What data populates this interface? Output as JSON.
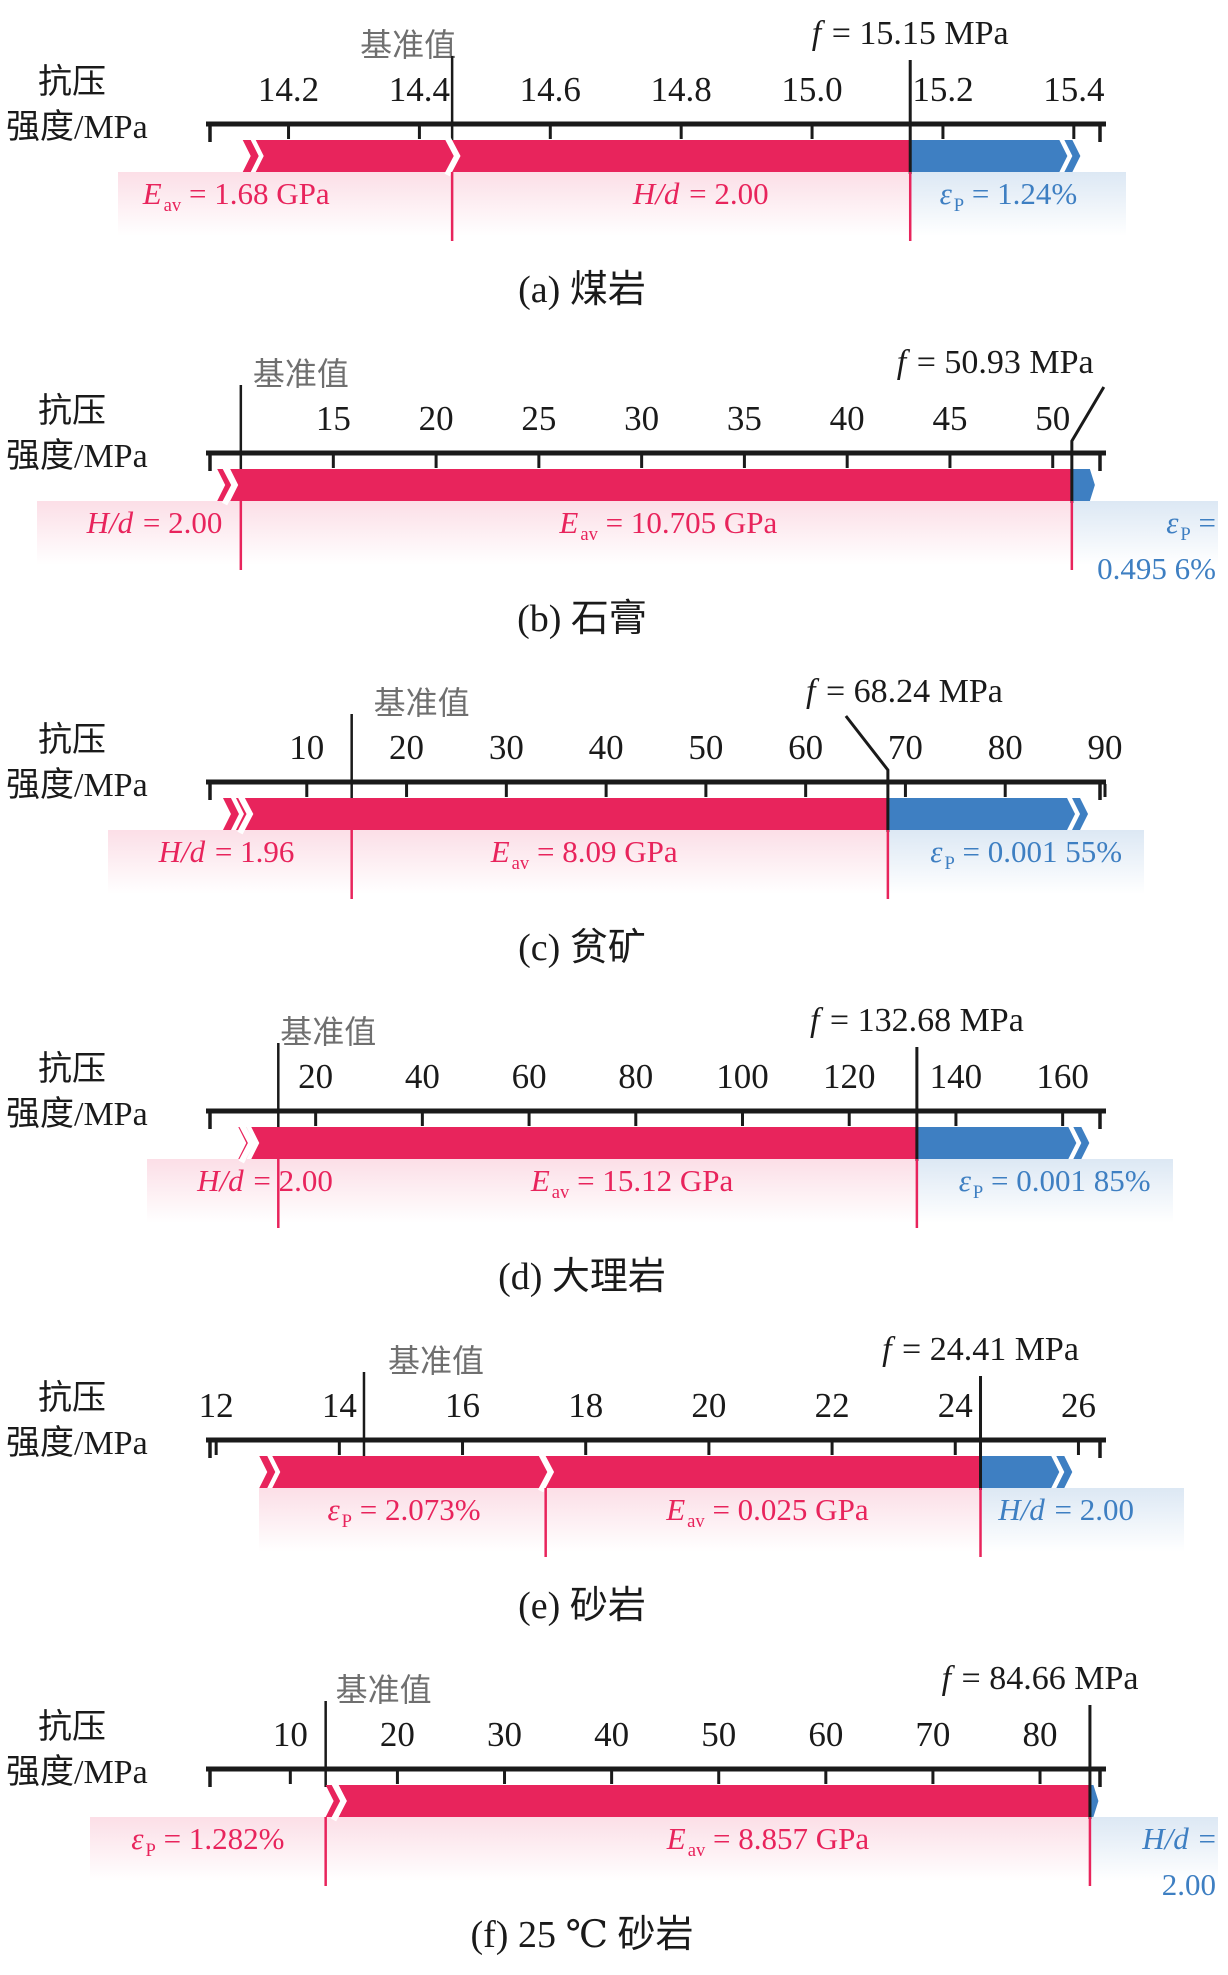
{
  "figure": {
    "background": "#ffffff"
  },
  "colors": {
    "crimson": "#E8245C",
    "blue": "#3E7FC2",
    "axis": "#1a1a1a",
    "ref_gray": "#6f6f6f",
    "pink_fade": "rgba(232,36,92,0.15)",
    "blue_fade": "rgba(62,127,194,0.18)"
  },
  "axis_label": {
    "line1": "抗压",
    "line2": "强度/MPa"
  },
  "ref_label": "基准值",
  "chart_data": {
    "type": "bar",
    "unit": "MPa",
    "panels": [
      {
        "id": "a",
        "caption": "(a) 煤岩",
        "f": 15.15,
        "f_var": "f",
        "f_text": "= 15.15 MPa",
        "f_label_at": 15.15,
        "connector": "vertical",
        "axis": {
          "min": 14.08,
          "max": 15.44
        },
        "tick_values": [
          14.2,
          14.4,
          14.6,
          14.8,
          15.0,
          15.2,
          15.4
        ],
        "tick_labels": [
          "14.2",
          "14.4",
          "14.6",
          "14.8",
          "15.0",
          "15.2",
          "15.4"
        ],
        "ref": 14.45,
        "ref_dx": -44,
        "sep1": 14.45,
        "break_at": 14.45,
        "bar_start": 14.13,
        "blue_end": 15.41,
        "annotations": [
          {
            "v": "E",
            "s": "av",
            "t": "= 1.68 GPa",
            "c": "pink",
            "at": 14.12
          },
          {
            "v": "H/d",
            "s": "",
            "t": "= 2.00",
            "c": "pink",
            "at": 14.83
          },
          {
            "v": "ε",
            "s": "P",
            "t": "= 1.24%",
            "c": "blue",
            "at": 15.3
          }
        ]
      },
      {
        "id": "b",
        "caption": "(b) 石膏",
        "f": 50.93,
        "f_var": "f",
        "f_text": "= 50.93 MPa",
        "f_label_at": 47.2,
        "connector": "diag-right",
        "axis": {
          "min": 9.0,
          "max": 52.3
        },
        "tick_values": [
          15,
          20,
          25,
          30,
          35,
          40,
          45,
          50
        ],
        "tick_labels": [
          "15",
          "20",
          "25",
          "30",
          "35",
          "40",
          "45",
          "50"
        ],
        "ref": 10.5,
        "ref_dx": 60,
        "sep1": 10.5,
        "break_at": 9.95,
        "bar_start": 9.35,
        "blue_end": 52.05,
        "annotations": [
          {
            "v": "H/d",
            "s": "",
            "t": "= 2.00",
            "c": "pink",
            "at": 6.3
          },
          {
            "v": "E",
            "s": "av",
            "t": "= 10.705 GPa",
            "c": "pink",
            "at": 31.3
          },
          {
            "v": "ε",
            "s": "P",
            "t": "=",
            "c": "blue",
            "edge": "right",
            "line2": "0.495 6%"
          }
        ]
      },
      {
        "id": "c",
        "caption": "(c) 贫矿",
        "f": 68.24,
        "f_var": "f",
        "f_text": "= 68.24 MPa",
        "f_label_at": 69.9,
        "connector": "diag-left",
        "axis": {
          "min": 0.3,
          "max": 89.5
        },
        "tick_values": [
          10,
          20,
          30,
          40,
          50,
          60,
          70,
          80,
          90
        ],
        "tick_labels": [
          "10",
          "20",
          "30",
          "40",
          "50",
          "60",
          "70",
          "80",
          "90"
        ],
        "ref": 14.5,
        "ref_dx": 70,
        "sep1": 14.5,
        "break_at": 3.8,
        "bar_start": 1.6,
        "blue_end": 88.3,
        "annotations": [
          {
            "v": "H/d",
            "s": "",
            "t": "= 1.96",
            "c": "pink",
            "at": 1.95
          },
          {
            "v": "E",
            "s": "av",
            "t": "= 8.09 GPa",
            "c": "pink",
            "at": 37.8
          },
          {
            "v": "ε",
            "s": "P",
            "t": "= 0.001 55%",
            "c": "blue",
            "at": 82.1
          }
        ]
      },
      {
        "id": "d",
        "caption": "(d) 大理岩",
        "f": 132.68,
        "f_var": "f",
        "f_text": "= 132.68 MPa",
        "f_label_at": 132.68,
        "connector": "vertical",
        "axis": {
          "min": 0.2,
          "max": 167
        },
        "tick_values": [
          20,
          40,
          60,
          80,
          100,
          120,
          140,
          160
        ],
        "tick_labels": [
          "20",
          "40",
          "60",
          "80",
          "100",
          "120",
          "140",
          "160"
        ],
        "ref": 13,
        "ref_dx": 50,
        "sep1": 13,
        "break_at": 7,
        "bar_start": 5.5,
        "blue_end": 165,
        "annotations": [
          {
            "v": "H/d",
            "s": "",
            "t": "= 2.00",
            "c": "pink",
            "at": 10.5
          },
          {
            "v": "E",
            "s": "av",
            "t": "= 15.12 GPa",
            "c": "pink",
            "at": 79.3
          },
          {
            "v": "ε",
            "s": "P",
            "t": "= 0.001 85%",
            "c": "blue",
            "at": 158.5
          }
        ]
      },
      {
        "id": "e",
        "caption": "(e) 砂岩",
        "f": 24.41,
        "f_var": "f",
        "f_text": "= 24.41 MPa",
        "f_label_at": 24.41,
        "connector": "vertical",
        "axis": {
          "min": 11.9,
          "max": 26.35
        },
        "tick_values": [
          12,
          14,
          16,
          18,
          20,
          22,
          24,
          26
        ],
        "tick_labels": [
          "12",
          "14",
          "16",
          "18",
          "20",
          "22",
          "24",
          "26"
        ],
        "ref": 14.4,
        "ref_dx": 72,
        "sep1": 17.35,
        "break_at": 17.35,
        "bar_start": 12.7,
        "blue_end": 25.9,
        "annotations": [
          {
            "v": "ε",
            "s": "P",
            "t": "= 2.073%",
            "c": "pink",
            "at": 15.05
          },
          {
            "v": "E",
            "s": "av",
            "t": "= 0.025 GPa",
            "c": "pink",
            "at": 20.95
          },
          {
            "v": "H/d",
            "s": "",
            "t": "= 2.00",
            "c": "blue",
            "at": 25.8
          }
        ]
      },
      {
        "id": "f",
        "caption": "(f) 25 ℃ 砂岩",
        "f": 84.66,
        "f_var": "f",
        "f_text": "= 84.66 MPa",
        "f_label_at": 80,
        "connector": "vertical",
        "axis": {
          "min": 2.5,
          "max": 85.6
        },
        "tick_values": [
          10,
          20,
          30,
          40,
          50,
          60,
          70,
          80
        ],
        "tick_labels": [
          "10",
          "20",
          "30",
          "40",
          "50",
          "60",
          "70",
          "80"
        ],
        "ref": 13.3,
        "ref_dx": 58,
        "sep1": 13.3,
        "break_at": 14.5,
        "bar_start": 13.3,
        "blue_end": 85.45,
        "annotations": [
          {
            "v": "ε",
            "s": "P",
            "t": "= 1.282%",
            "c": "pink",
            "at": 2.3
          },
          {
            "v": "E",
            "s": "av",
            "t": "= 8.857 GPa",
            "c": "pink",
            "at": 54.6
          },
          {
            "v": "H/d",
            "s": "",
            "t": "=",
            "c": "blue",
            "edge": "right",
            "line2": "2.00"
          }
        ]
      }
    ]
  }
}
